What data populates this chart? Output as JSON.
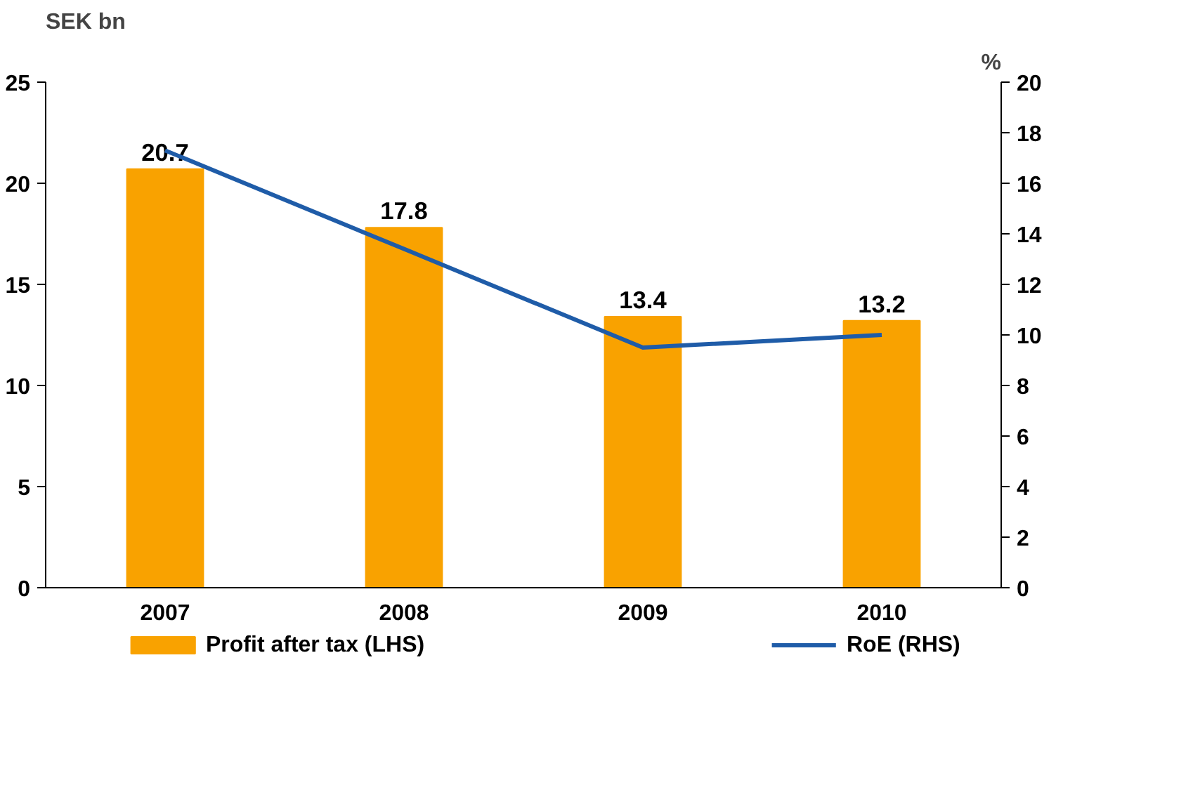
{
  "chart_data": {
    "type": "bar",
    "categories": [
      "2007",
      "2008",
      "2009",
      "2010"
    ],
    "ylabel": "SEK bn",
    "y2label": "%",
    "ylim": [
      0,
      25
    ],
    "yticks": [
      0,
      5,
      10,
      15,
      20,
      25
    ],
    "y2lim": [
      0,
      20
    ],
    "y2ticks": [
      0,
      2,
      4,
      6,
      8,
      10,
      12,
      14,
      16,
      18,
      20
    ],
    "legend": "bottom",
    "grid": false,
    "series": [
      {
        "name": "Profit after tax (LHS)",
        "color": "#f9a200",
        "values": [
          20.7,
          17.8,
          13.4,
          13.2
        ],
        "value_labels": [
          "20.7",
          "17.8",
          "13.4",
          "13.2"
        ]
      },
      {
        "name": "RoE (RHS)",
        "type": "line",
        "axis": "y2",
        "color": "#1f5ca8",
        "values": [
          17.3,
          13.4,
          9.5,
          10.0
        ]
      }
    ]
  }
}
